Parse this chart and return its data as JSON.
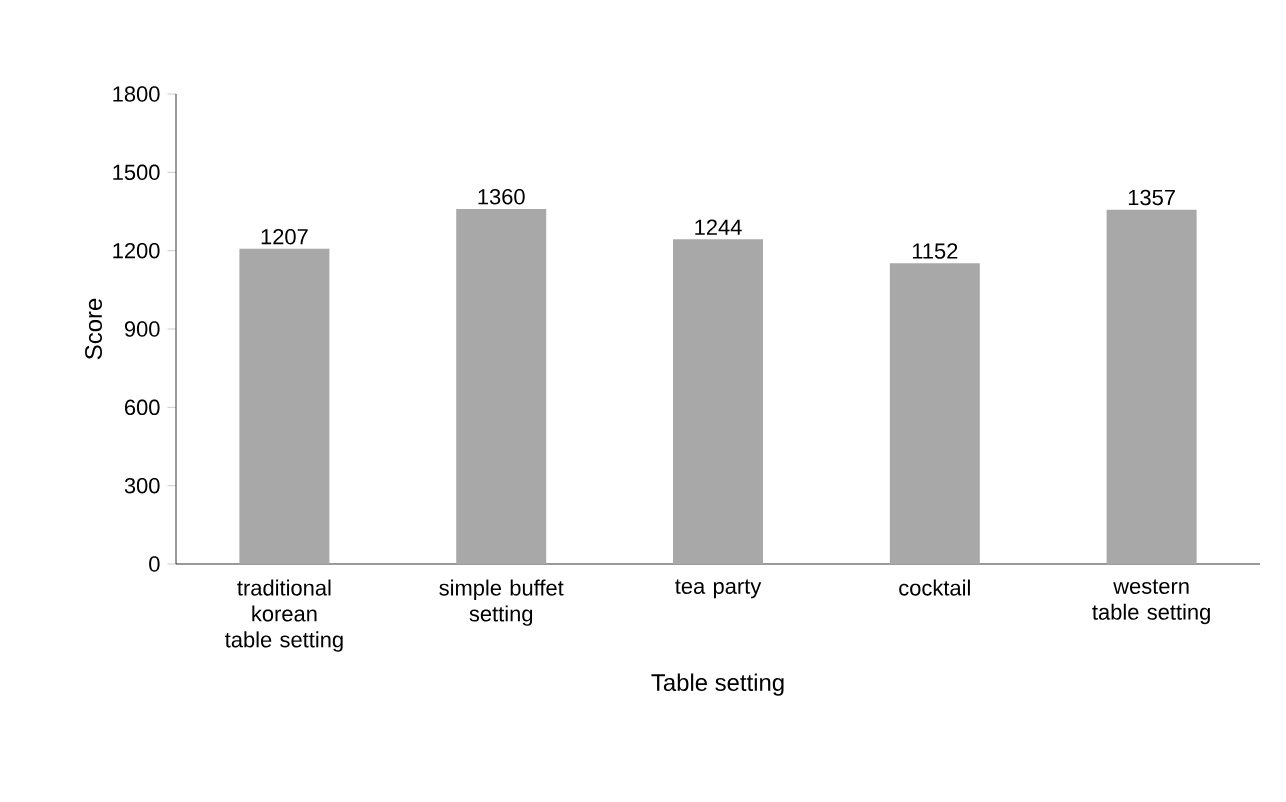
{
  "chart_data": {
    "type": "bar",
    "xlabel": "Table setting",
    "ylabel": "Score",
    "categories": [
      "traditional korean table setting",
      "simple buffet setting",
      "tea party",
      "cocktail",
      "western table setting"
    ],
    "values": [
      1207,
      1360,
      1244,
      1152,
      1357
    ],
    "color": "#a8a8a8",
    "ylim": [
      0,
      1800
    ],
    "yticks": [
      0,
      300,
      600,
      900,
      1200,
      1500,
      1800
    ],
    "data_labels": true,
    "grid": false
  }
}
